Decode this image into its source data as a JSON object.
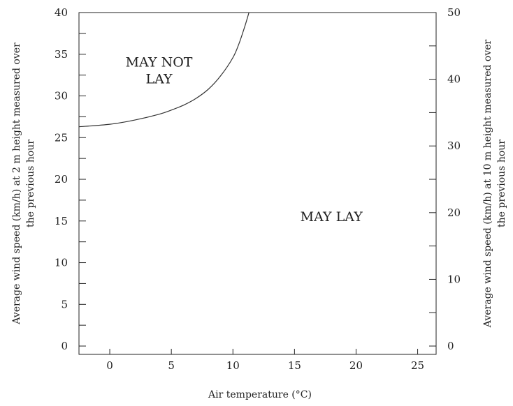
{
  "chart_data": {
    "type": "line",
    "xlabel": "Air temperature (°C)",
    "ylabel_left": [
      "Average wind speed (km/h) at 2 m height measured over",
      "the previous hour"
    ],
    "ylabel_right": [
      "Average wind speed (km/h) at 10 m height measured over",
      "the previous hour"
    ],
    "xlim": [
      -2.5,
      26.5
    ],
    "ylim": [
      -1,
      40
    ],
    "y2lim": [
      -1.25,
      50
    ],
    "x_ticks": [
      0,
      5,
      10,
      15,
      20,
      25
    ],
    "y_ticks": [
      0,
      5,
      10,
      15,
      20,
      25,
      30,
      35,
      40
    ],
    "y_minor_ticks": [
      2.5,
      7.5,
      12.5,
      17.5,
      22.5,
      27.5,
      32.5,
      37.5
    ],
    "y2_ticks": [
      0,
      10,
      20,
      30,
      40,
      50
    ],
    "y2_minor_ticks": [
      5,
      15,
      25,
      35,
      45
    ],
    "grid": false,
    "series": [
      {
        "x": [
          -2.5,
          0,
          2,
          4,
          5,
          6,
          7,
          8,
          9,
          10,
          10.5,
          11,
          11.3
        ],
        "y": [
          26.3,
          26.6,
          27.1,
          27.8,
          28.3,
          28.9,
          29.7,
          30.8,
          32.4,
          34.6,
          36.3,
          38.5,
          40
        ]
      }
    ],
    "annotations": [
      {
        "text": [
          "MAY NOT",
          "LAY"
        ],
        "x": 4,
        "y": 33.5
      },
      {
        "text": [
          "MAY LAY"
        ],
        "x": 18,
        "y": 15
      }
    ]
  }
}
